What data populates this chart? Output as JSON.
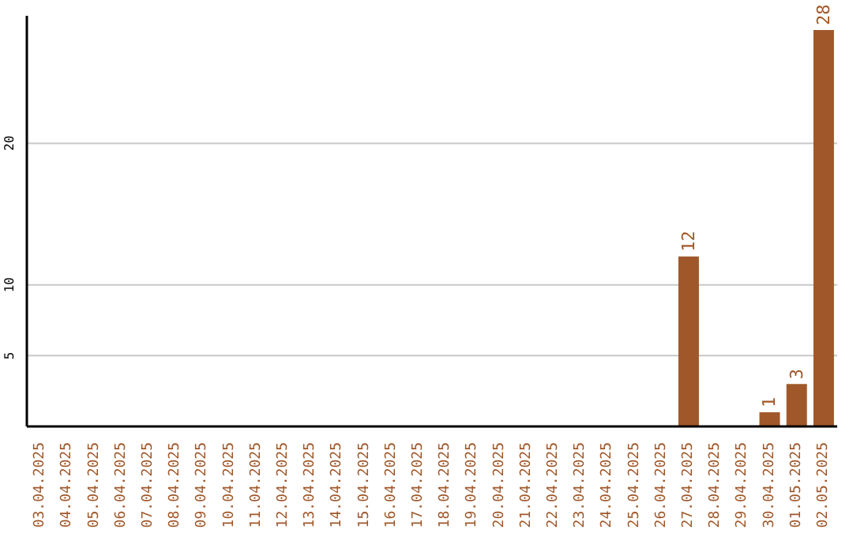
{
  "chart_data": {
    "type": "bar",
    "categories": [
      "03.04.2025",
      "04.04.2025",
      "05.04.2025",
      "06.04.2025",
      "07.04.2025",
      "08.04.2025",
      "09.04.2025",
      "10.04.2025",
      "11.04.2025",
      "12.04.2025",
      "13.04.2025",
      "14.04.2025",
      "15.04.2025",
      "16.04.2025",
      "17.04.2025",
      "18.04.2025",
      "19.04.2025",
      "20.04.2025",
      "21.04.2025",
      "22.04.2025",
      "23.04.2025",
      "24.04.2025",
      "25.04.2025",
      "26.04.2025",
      "27.04.2025",
      "28.04.2025",
      "29.04.2025",
      "30.04.2025",
      "01.05.2025",
      "02.05.2025"
    ],
    "values": [
      0,
      0,
      0,
      0,
      0,
      0,
      0,
      0,
      0,
      0,
      0,
      0,
      0,
      0,
      0,
      0,
      0,
      0,
      0,
      0,
      0,
      0,
      0,
      0,
      12,
      0,
      0,
      1,
      3,
      28
    ],
    "value_labels": [
      null,
      null,
      null,
      null,
      null,
      null,
      null,
      null,
      null,
      null,
      null,
      null,
      null,
      null,
      null,
      null,
      null,
      null,
      null,
      null,
      null,
      null,
      null,
      null,
      "12",
      null,
      null,
      "1",
      "3",
      "28"
    ],
    "color": "#a0582a",
    "ylim": [
      0,
      29
    ],
    "yticks": [
      5,
      10,
      20
    ],
    "grid": "y"
  }
}
